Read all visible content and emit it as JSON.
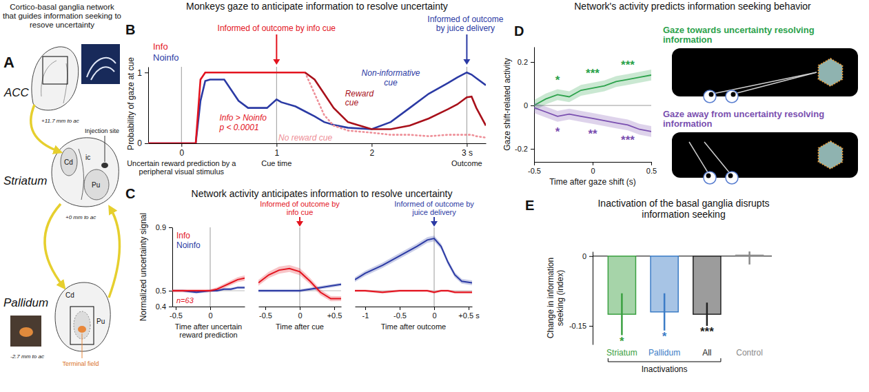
{
  "diagram": {
    "label": "A",
    "title": "Cortico-basal ganglia network that guides information seeking to resove uncertainty",
    "regions": [
      {
        "name": "ACC",
        "coord": "+11.7 mm to ac"
      },
      {
        "name": "Striatum",
        "coord": "+0 mm to ac",
        "labels": [
          "Cd",
          "ic",
          "Pu",
          "Injection site"
        ]
      },
      {
        "name": "Pallidum",
        "coord": "-2.7 mm to ac",
        "labels": [
          "Cd",
          "Pu",
          "Terminal field"
        ]
      }
    ]
  },
  "chart_data": [
    {
      "type": "line",
      "label": "B",
      "title": "Monkeys gaze to anticipate information to resolve uncertainty",
      "ylabel": "Probability of gaze at cue",
      "x": [
        -0.35,
        0,
        0.15,
        0.2,
        0.25,
        0.3,
        0.45,
        0.6,
        0.7,
        0.9,
        1.0,
        1.05,
        1.2,
        1.3,
        1.4,
        1.5,
        1.6,
        1.75,
        2.0,
        2.2,
        2.4,
        2.6,
        2.8,
        2.9,
        3.0,
        3.05,
        3.1,
        3.2
      ],
      "xlim": [
        -0.35,
        3.2
      ],
      "xticks": [
        0,
        1,
        2,
        {
          "value": 3,
          "label": "3 s"
        }
      ],
      "ylim": [
        0,
        1.08
      ],
      "yticks": [
        0,
        1
      ],
      "legend": "top-left",
      "series": [
        {
          "name": "Info",
          "color": "#e3131e",
          "line_style": "solid",
          "values": [
            0,
            0,
            0,
            0.9,
            1,
            1,
            1,
            1,
            1,
            1,
            1,
            1,
            1,
            1,
            null,
            null,
            null,
            null,
            null,
            null,
            null,
            null,
            null,
            null,
            null,
            null,
            null,
            null
          ]
        },
        {
          "name": "Noinfo",
          "color": "#2b3aa4",
          "line_style": "solid",
          "values": [
            0,
            0,
            0,
            0.6,
            0.88,
            0.9,
            0.9,
            0.6,
            0.5,
            0.5,
            0.62,
            0.58,
            0.52,
            0.45,
            0.38,
            0.3,
            0.26,
            0.22,
            0.2,
            0.3,
            0.5,
            0.7,
            0.85,
            0.93,
            1,
            0.97,
            0.92,
            0.82
          ]
        },
        {
          "name": "Reward cue",
          "color": "#a8101a",
          "line_style": "solid",
          "values": [
            null,
            null,
            null,
            null,
            null,
            null,
            null,
            null,
            null,
            null,
            null,
            null,
            null,
            1,
            0.9,
            0.7,
            0.5,
            0.3,
            0.2,
            0.2,
            0.25,
            0.35,
            0.48,
            0.55,
            0.65,
            0.66,
            0.5,
            0.25
          ]
        },
        {
          "name": "No reward cue",
          "color": "#ee8f98",
          "line_style": "dotted",
          "values": [
            null,
            null,
            null,
            null,
            null,
            null,
            null,
            null,
            null,
            null,
            null,
            null,
            null,
            1,
            0.7,
            0.4,
            0.25,
            0.18,
            0.15,
            0.12,
            0.12,
            0.1,
            0.12,
            0.12,
            0.12,
            0.12,
            0.1,
            0.08
          ]
        }
      ],
      "annotations": [
        "Informed of outcome by info cue",
        "Informed of outcome by juice delivery",
        "Info > Noinfo",
        "p < 0.0001",
        "Non-informative cue",
        "Uncertain reward prediction by a peripheral visual stimulus",
        "Cue time",
        "Outcome"
      ]
    },
    {
      "type": "line",
      "label": "C",
      "title": "Network activity anticipates information to resolve uncertainty",
      "ylabel": "Normalized uncertainty signal",
      "ylim": [
        0.4,
        0.9
      ],
      "yticks": [
        0.4,
        0.5,
        0.9
      ],
      "legend": "top-left",
      "series": [
        {
          "name": "Info",
          "color": "#e3131e"
        },
        {
          "name": "Noinfo",
          "color": "#2b3aa4"
        }
      ],
      "annotations": [
        "n=63",
        "Informed of outcome by info cue",
        "Informed of outcome by juice delivery"
      ],
      "panels": [
        {
          "xlabel": "Time after uncertain reward prediction",
          "x": [
            -0.55,
            -0.4,
            -0.2,
            0,
            0.1,
            0.2,
            0.3,
            0.4,
            0.5
          ],
          "xlim": [
            -0.55,
            0.5
          ],
          "xticks": [
            -0.5,
            0
          ],
          "series": [
            {
              "values": [
                0.5,
                0.5,
                0.5,
                0.5,
                0.51,
                0.53,
                0.55,
                0.57,
                0.58
              ],
              "sem": [
                0.01,
                0.01,
                0.01,
                0.01,
                0.012,
                0.014,
                0.015,
                0.016,
                0.017
              ]
            },
            {
              "values": [
                0.5,
                0.5,
                0.49,
                0.5,
                0.5,
                0.51,
                0.51,
                0.52,
                0.52
              ],
              "sem": [
                0.008,
                0.008,
                0.008,
                0.008,
                0.008,
                0.008,
                0.008,
                0.008,
                0.008
              ]
            }
          ]
        },
        {
          "xlabel": "Time after cue",
          "x": [
            -0.6,
            -0.45,
            -0.3,
            -0.15,
            0,
            0.15,
            0.3,
            0.45,
            0.6
          ],
          "xlim": [
            -0.6,
            0.6
          ],
          "xticks": [
            -0.5,
            0,
            {
              "value": 0.5,
              "label": "+0.5"
            }
          ],
          "series": [
            {
              "values": [
                0.55,
                0.6,
                0.63,
                0.64,
                0.62,
                0.56,
                0.49,
                0.45,
                0.45
              ],
              "sem": [
                0.018,
                0.02,
                0.022,
                0.022,
                0.022,
                0.02,
                0.018,
                0.016,
                0.015
              ]
            },
            {
              "values": [
                0.5,
                0.5,
                0.5,
                0.5,
                0.5,
                0.51,
                0.52,
                0.53,
                0.54
              ],
              "sem": [
                0.01,
                0.01,
                0.01,
                0.01,
                0.01,
                0.01,
                0.01,
                0.01,
                0.01
              ]
            }
          ]
        },
        {
          "xlabel": "Time after outcome",
          "x": [
            -1.15,
            -1,
            -0.75,
            -0.5,
            -0.25,
            -0.1,
            0,
            0.1,
            0.2,
            0.3,
            0.4,
            0.55
          ],
          "xlim": [
            -1.15,
            0.55
          ],
          "xticks": [
            -1,
            -0.5,
            0,
            {
              "value": 0.5,
              "label": "+0.5 s"
            }
          ],
          "series": [
            {
              "values": [
                0.5,
                0.5,
                0.49,
                0.5,
                0.5,
                0.5,
                0.49,
                0.5,
                0.5,
                0.49,
                0.49,
                0.49
              ],
              "sem": [
                0.008,
                0.008,
                0.008,
                0.008,
                0.008,
                0.008,
                0.008,
                0.008,
                0.008,
                0.008,
                0.008,
                0.008
              ]
            },
            {
              "values": [
                0.57,
                0.61,
                0.66,
                0.72,
                0.78,
                0.82,
                0.83,
                0.78,
                0.68,
                0.6,
                0.56,
                0.55
              ],
              "sem": [
                0.015,
                0.016,
                0.017,
                0.018,
                0.018,
                0.018,
                0.018,
                0.018,
                0.017,
                0.016,
                0.015,
                0.015
              ]
            }
          ]
        }
      ]
    },
    {
      "type": "line",
      "label": "D",
      "title": "Network's activity predicts information seeking behavior",
      "xlabel": "Time after gaze shift (s)",
      "ylabel": "Gaze shift-related activity",
      "x": [
        -0.5,
        -0.4,
        -0.3,
        -0.2,
        -0.1,
        0,
        0.1,
        0.2,
        0.3,
        0.4,
        0.5
      ],
      "xlim": [
        -0.5,
        0.5
      ],
      "xticks": [
        -0.5,
        0,
        0.5
      ],
      "ylim": [
        -0.26,
        0.27
      ],
      "yticks": [
        -0.2,
        0,
        0.2
      ],
      "legend": "right",
      "series": [
        {
          "name": "Gaze towards uncertainty resolving information",
          "color": "#2ca24b",
          "values": [
            0,
            0.03,
            0.05,
            0.04,
            0.07,
            0.08,
            0.09,
            0.11,
            0.12,
            0.13,
            0.14
          ],
          "sem": [
            0.025,
            0.025,
            0.025,
            0.025,
            0.025,
            0.025,
            0.025,
            0.025,
            0.025,
            0.025,
            0.025
          ],
          "significance": [
            "*",
            "***",
            "***"
          ],
          "significance_x": [
            -0.3,
            0,
            0.3
          ]
        },
        {
          "name": "Gaze away from uncertainty resolving information",
          "color": "#7a4fb0",
          "values": [
            -0.01,
            -0.03,
            -0.05,
            -0.04,
            -0.05,
            -0.06,
            -0.07,
            -0.08,
            -0.09,
            -0.11,
            -0.12
          ],
          "sem": [
            0.025,
            0.025,
            0.025,
            0.025,
            0.025,
            0.025,
            0.025,
            0.025,
            0.025,
            0.025,
            0.025
          ],
          "significance": [
            "*",
            "**",
            "***"
          ],
          "significance_x": [
            -0.3,
            0,
            0.3
          ]
        }
      ]
    },
    {
      "type": "bar",
      "label": "E",
      "title": "Inactivation of the basal ganglia disrupts information seeking",
      "ylabel": "Change in information seeking (index)",
      "categories": [
        "Striatum",
        "Pallidum",
        "All",
        "Control"
      ],
      "values": [
        -0.125,
        -0.12,
        -0.125,
        0.002
      ],
      "errors": [
        0.045,
        0.04,
        0.025,
        0.02
      ],
      "colors": [
        "#3aa040",
        "#3b7cc6",
        "#222222",
        "#8a8a8a"
      ],
      "ylim": [
        -0.19,
        0.01
      ],
      "yticks": [
        -0.15,
        0
      ],
      "significance": [
        "*",
        "*",
        "***",
        null
      ],
      "annotations": [
        "Inactivations"
      ]
    }
  ]
}
